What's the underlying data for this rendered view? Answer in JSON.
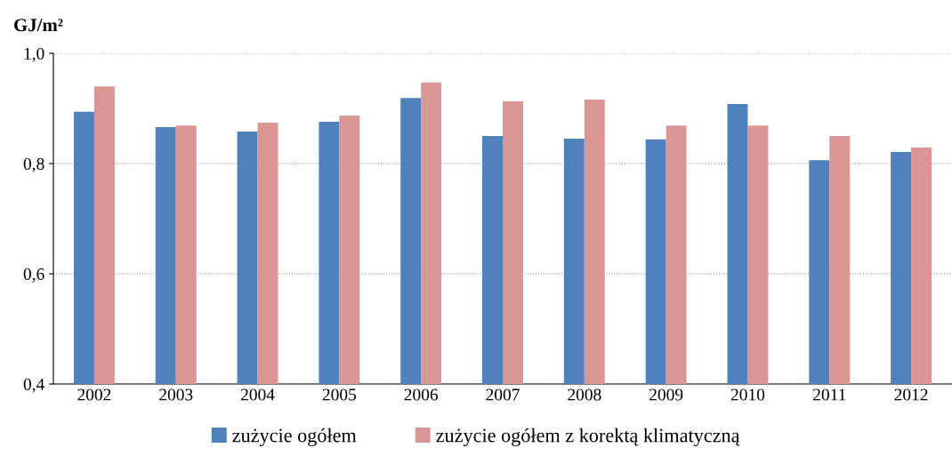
{
  "chart_data": {
    "type": "bar",
    "ylabel": "GJ/m²",
    "categories": [
      "2002",
      "2003",
      "2004",
      "2005",
      "2006",
      "2007",
      "2008",
      "2009",
      "2010",
      "2011",
      "2012"
    ],
    "series": [
      {
        "name": "zużycie ogółem",
        "color": "#4f81bd",
        "values": [
          0.894,
          0.866,
          0.858,
          0.876,
          0.919,
          0.85,
          0.845,
          0.844,
          0.908,
          0.806,
          0.821
        ]
      },
      {
        "name": "zużycie ogółem z korektą klimatyczną",
        "color": "#d99694",
        "values": [
          0.94,
          0.869,
          0.874,
          0.887,
          0.947,
          0.913,
          0.916,
          0.869,
          0.869,
          0.85,
          0.829
        ]
      }
    ],
    "ylim": [
      0.4,
      1.0
    ],
    "yticks": [
      {
        "value": 0.4,
        "label": "0,4"
      },
      {
        "value": 0.6,
        "label": "0,6"
      },
      {
        "value": 0.8,
        "label": "0,8"
      },
      {
        "value": 1.0,
        "label": "1,0"
      }
    ],
    "grid": "y",
    "legend": "bottom"
  }
}
